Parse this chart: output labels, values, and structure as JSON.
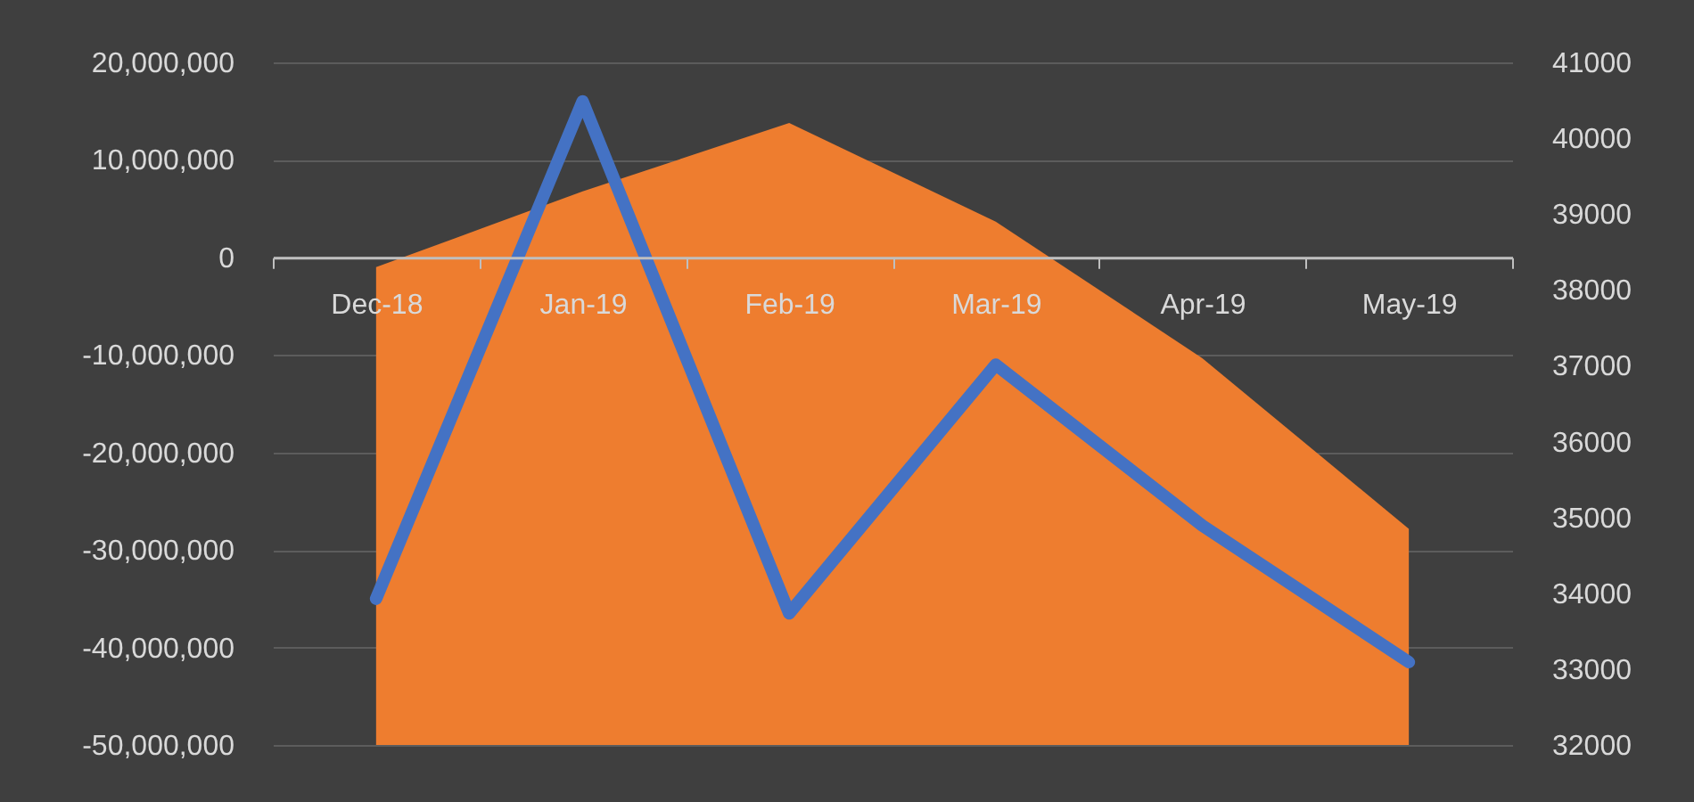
{
  "chart_data": {
    "type": "line",
    "categories": [
      "Dec-18",
      "Jan-19",
      "Feb-19",
      "Mar-19",
      "Apr-19",
      "May-19"
    ],
    "series": [
      {
        "type": "area",
        "axis": "y2",
        "color": "#ee7d2f",
        "values": [
          38300,
          39300,
          40200,
          38900,
          37100,
          34850
        ]
      },
      {
        "color": "#4472c4",
        "values": [
          -35000000,
          16000000,
          -36500000,
          -11000000,
          -27500000,
          -41500000
        ]
      }
    ],
    "ylim": [
      -50000000,
      20000000
    ],
    "yticks": [
      {
        "value": -50000000,
        "label": "-50,000,000"
      },
      {
        "value": -40000000,
        "label": "-40,000,000"
      },
      {
        "value": -30000000,
        "label": "-30,000,000"
      },
      {
        "value": -20000000,
        "label": "-20,000,000"
      },
      {
        "value": -10000000,
        "label": "-10,000,000"
      },
      0,
      {
        "value": 10000000,
        "label": "10,000,000"
      },
      {
        "value": 20000000,
        "label": "20,000,000"
      }
    ],
    "y2lim": [
      32000,
      41000
    ],
    "y2ticks": [
      32000,
      33000,
      34000,
      35000,
      36000,
      37000,
      38000,
      39000,
      40000,
      41000
    ],
    "grid": "y"
  }
}
